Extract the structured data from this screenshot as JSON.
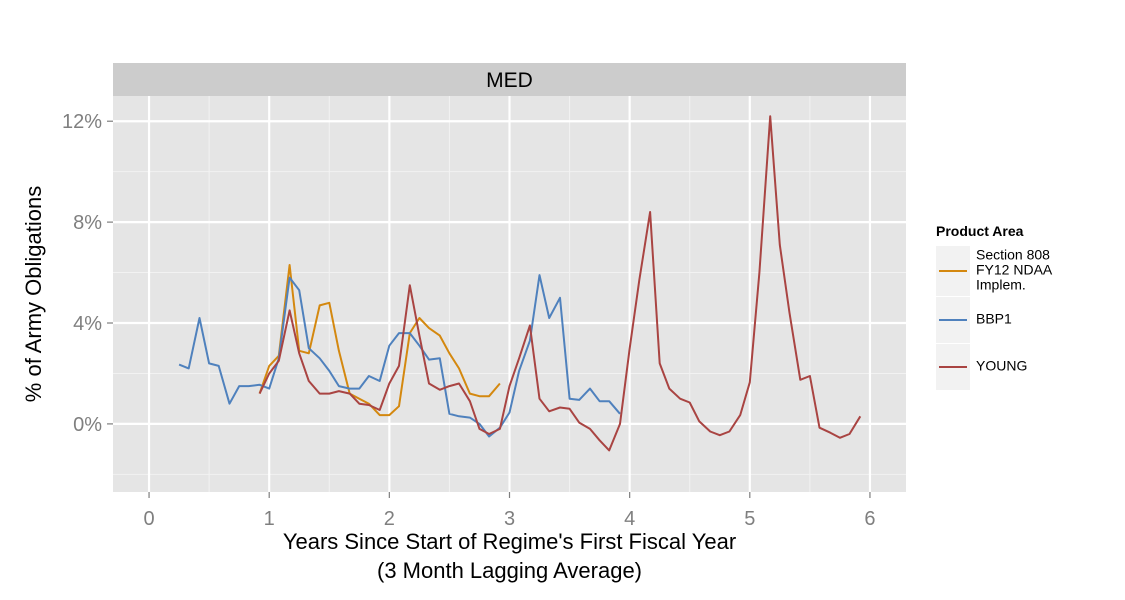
{
  "chart_data": {
    "type": "line",
    "panel_title": "MED",
    "xlabel": [
      "Years Since Start of Regime's First Fiscal Year",
      "(3 Month Lagging Average)"
    ],
    "ylabel": "% of Army Obligations",
    "xlim": [
      -0.3,
      6.3
    ],
    "ylim": [
      -2.7,
      13.0
    ],
    "x_ticks": [
      0,
      1,
      2,
      3,
      4,
      5,
      6
    ],
    "x_tick_labels": [
      "0",
      "1",
      "2",
      "3",
      "4",
      "5",
      "6"
    ],
    "y_ticks": [
      0,
      4,
      8,
      12
    ],
    "y_tick_labels": [
      "0%",
      "4%",
      "8%",
      "12%"
    ],
    "grid": true,
    "legend": {
      "title": "Product Area",
      "position": "right"
    },
    "series": [
      {
        "name": "Section 808 FY12 NDAA Implem.",
        "legend_lines": [
          "Section 808",
          "FY12 NDAA",
          "Implem."
        ],
        "color": "#d4880f",
        "x": [
          0.92,
          1.0,
          1.08,
          1.17,
          1.25,
          1.33,
          1.42,
          1.5,
          1.58,
          1.67,
          1.75,
          1.83,
          1.92,
          2.0,
          2.08,
          2.17,
          2.25,
          2.33,
          2.42,
          2.5,
          2.58,
          2.67,
          2.75,
          2.83,
          2.92
        ],
        "y": [
          1.2,
          2.3,
          2.7,
          6.3,
          2.9,
          2.8,
          4.7,
          4.8,
          2.9,
          1.2,
          1.0,
          0.8,
          0.35,
          0.35,
          0.7,
          3.6,
          4.2,
          3.8,
          3.5,
          2.8,
          2.2,
          1.2,
          1.1,
          1.1,
          1.6
        ]
      },
      {
        "name": "BBP1",
        "legend_lines": [
          "BBP1"
        ],
        "color": "#4f81bd",
        "x": [
          0.25,
          0.33,
          0.42,
          0.5,
          0.58,
          0.67,
          0.75,
          0.83,
          0.92,
          1.0,
          1.08,
          1.17,
          1.25,
          1.33,
          1.42,
          1.5,
          1.58,
          1.67,
          1.75,
          1.83,
          1.92,
          2.0,
          2.08,
          2.17,
          2.25,
          2.33,
          2.42,
          2.5,
          2.58,
          2.67,
          2.75,
          2.83,
          2.92,
          3.0,
          3.08,
          3.17,
          3.25,
          3.33,
          3.42,
          3.5,
          3.58,
          3.67,
          3.75,
          3.83,
          3.92
        ],
        "y": [
          2.35,
          2.2,
          4.2,
          2.4,
          2.3,
          0.8,
          1.5,
          1.5,
          1.55,
          1.4,
          2.6,
          5.8,
          5.3,
          3.0,
          2.6,
          2.1,
          1.5,
          1.4,
          1.4,
          1.9,
          1.7,
          3.1,
          3.6,
          3.6,
          3.1,
          2.55,
          2.6,
          0.4,
          0.3,
          0.25,
          0.0,
          -0.5,
          -0.15,
          0.45,
          2.1,
          3.3,
          5.9,
          4.2,
          5.0,
          1.0,
          0.95,
          1.4,
          0.9,
          0.9,
          0.4
        ]
      },
      {
        "name": "YOUNG",
        "legend_lines": [
          "YOUNG"
        ],
        "color": "#a94442",
        "x": [
          0.92,
          1.0,
          1.08,
          1.17,
          1.25,
          1.33,
          1.42,
          1.5,
          1.58,
          1.67,
          1.75,
          1.83,
          1.92,
          2.0,
          2.08,
          2.17,
          2.25,
          2.33,
          2.42,
          2.5,
          2.58,
          2.67,
          2.75,
          2.83,
          2.92,
          3.0,
          3.08,
          3.17,
          3.25,
          3.33,
          3.42,
          3.5,
          3.58,
          3.67,
          3.75,
          3.83,
          3.92,
          4.0,
          4.08,
          4.17,
          4.25,
          4.33,
          4.42,
          4.5,
          4.58,
          4.67,
          4.75,
          4.83,
          4.92,
          5.0,
          5.08,
          5.17,
          5.25,
          5.33,
          5.42,
          5.5,
          5.58,
          5.67,
          5.75,
          5.83,
          5.92
        ],
        "y": [
          1.2,
          2.0,
          2.5,
          4.5,
          2.8,
          1.7,
          1.2,
          1.2,
          1.3,
          1.2,
          0.8,
          0.75,
          0.55,
          1.6,
          2.3,
          5.5,
          3.5,
          1.6,
          1.35,
          1.5,
          1.6,
          0.9,
          -0.2,
          -0.4,
          -0.2,
          1.5,
          2.6,
          3.9,
          1.0,
          0.5,
          0.65,
          0.6,
          0.05,
          -0.2,
          -0.65,
          -1.05,
          0.0,
          3.0,
          5.7,
          8.4,
          2.4,
          1.4,
          1.0,
          0.85,
          0.1,
          -0.3,
          -0.45,
          -0.3,
          0.35,
          1.65,
          6.0,
          12.2,
          7.1,
          4.4,
          1.75,
          1.9,
          -0.15,
          -0.35,
          -0.55,
          -0.4,
          0.3
        ]
      }
    ]
  }
}
